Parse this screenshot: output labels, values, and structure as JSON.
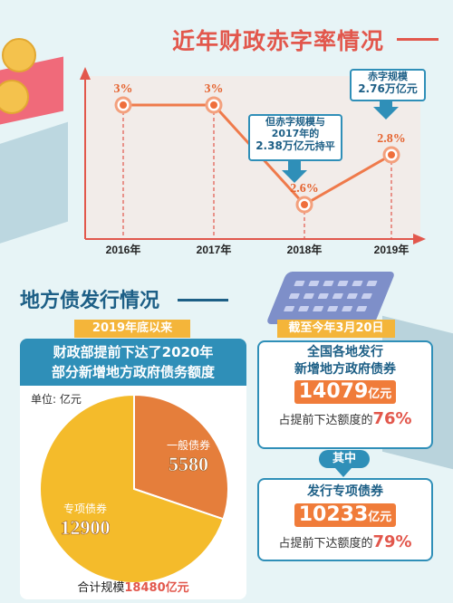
{
  "colors": {
    "accent_red": "#e2574c",
    "blue": "#2f8fb8",
    "dark_blue": "#1d5f86",
    "orange": "#f07c3a",
    "pie_orange": "#e57e3b",
    "pie_yellow": "#f4bb2b",
    "gold": "#f4b53a"
  },
  "chart_data": [
    {
      "type": "line",
      "title": "近年财政赤字率情况",
      "categories": [
        "2016年",
        "2017年",
        "2018年",
        "2019年"
      ],
      "series": [
        {
          "values": [
            3,
            3,
            2.6,
            2.8
          ],
          "data_labels": [
            "3%",
            "3%",
            "2.6%",
            "2.8%"
          ]
        }
      ],
      "annotations": [
        {
          "lines": [
            "但赤字规模与",
            "2017年的"
          ],
          "highlight": "2.38万亿元",
          "suffix": "持平"
        },
        {
          "lines": [
            "赤字规模"
          ],
          "highlight": "2.76万亿元"
        }
      ]
    },
    {
      "type": "pie",
      "title": "地方债发行情况",
      "ribbon": "2019年底以来",
      "header_lines": [
        "财政部提前下达了2020年",
        "部分新增地方政府债务额度"
      ],
      "unit_label": "单位: 亿元",
      "slices": [
        {
          "name": "一般债券",
          "value": 5580
        },
        {
          "name": "专项债券",
          "value": 12900
        }
      ],
      "total_prefix": "合计规模",
      "total_value": "18480亿元"
    }
  ],
  "right_panel": {
    "ribbon": "截至今年3月20日",
    "box1": {
      "head_lines": [
        "全国各地发行",
        "新增地方政府债券"
      ],
      "number": "14079",
      "unit": "亿元",
      "foot_prefix": "占提前下达额度的",
      "foot_pct": "76%"
    },
    "connector": "其中",
    "box2": {
      "head": "发行专项债券",
      "number": "10233",
      "unit": "亿元",
      "foot_prefix": "占提前下达额度的",
      "foot_pct": "79%"
    }
  }
}
